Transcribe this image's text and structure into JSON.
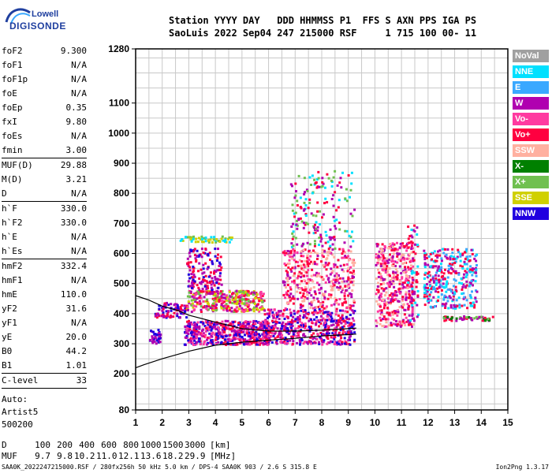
{
  "logo": {
    "top": "Lowell",
    "bottom": "DIGISONDE"
  },
  "header": {
    "line1": "Station YYYY DAY   DDD HHMMSS P1  FFS S AXN PPS IGA PS",
    "line2": "SaoLuis 2022 Sep04 247 215000 RSF     1 715 100 00- 11"
  },
  "params": [
    {
      "label": "foF2",
      "value": "9.300"
    },
    {
      "label": "foF1",
      "value": "N/A"
    },
    {
      "label": "foF1p",
      "value": "N/A"
    },
    {
      "label": "foE",
      "value": "N/A"
    },
    {
      "label": "foEp",
      "value": "0.35"
    },
    {
      "label": "fxI",
      "value": "9.80"
    },
    {
      "label": "foEs",
      "value": "N/A"
    },
    {
      "label": "fmin",
      "value": "3.00"
    },
    {
      "sep": true
    },
    {
      "label": "MUF(D)",
      "value": "29.88"
    },
    {
      "label": "M(D)",
      "value": "3.21"
    },
    {
      "label": "D",
      "value": "N/A"
    },
    {
      "sep": true
    },
    {
      "label": "h`F",
      "value": "330.0"
    },
    {
      "label": "h`F2",
      "value": "330.0"
    },
    {
      "label": "h`E",
      "value": "N/A"
    },
    {
      "label": "h`Es",
      "value": "N/A"
    },
    {
      "sep": true
    },
    {
      "label": "hmF2",
      "value": "332.4"
    },
    {
      "label": "hmF1",
      "value": "N/A"
    },
    {
      "label": "hmE",
      "value": "110.0"
    },
    {
      "label": "yF2",
      "value": "31.6"
    },
    {
      "label": "yF1",
      "value": "N/A"
    },
    {
      "label": "yE",
      "value": "20.0"
    },
    {
      "label": "B0",
      "value": "44.2"
    },
    {
      "label": "B1",
      "value": "1.01"
    },
    {
      "sep": true
    },
    {
      "label": "C-level",
      "value": "33"
    },
    {
      "sep": true
    }
  ],
  "auto": [
    "Auto:",
    "Artist5",
    "500200"
  ],
  "legend": [
    {
      "label": "NoVal",
      "color": "#a0a0a0"
    },
    {
      "label": "NNE",
      "color": "#00e0ff"
    },
    {
      "label": "E",
      "color": "#3aa8ff"
    },
    {
      "label": "W",
      "color": "#b000b0"
    },
    {
      "label": "Vo-",
      "color": "#ff3aa0"
    },
    {
      "label": "Vo+",
      "color": "#ff0040"
    },
    {
      "label": "SSW",
      "color": "#ffb0a0"
    },
    {
      "label": "X-",
      "color": "#008000"
    },
    {
      "label": "X+",
      "color": "#70c050"
    },
    {
      "label": "SSE",
      "color": "#d0d000"
    },
    {
      "label": "NNW",
      "color": "#2000e0"
    }
  ],
  "bottom": {
    "d_label": "D",
    "d_values": [
      "100",
      "200",
      "400",
      "600",
      "800",
      "1000",
      "1500",
      "3000",
      "[km]"
    ],
    "muf_label": "MUF",
    "muf_values": [
      "9.7",
      "9.8",
      "10.2",
      "11.0",
      "12.1",
      "13.6",
      "18.2",
      "29.9",
      "[MHz]"
    ]
  },
  "footer": "SAA0K_2022247215000.RSF / 280fx256h 50 kHz 5.0 km / DPS-4 SAA0K 903 / 2.6 S 315.8 E",
  "version": "Ion2Png 1.3.17",
  "chart_data": {
    "type": "scatter",
    "title": "",
    "xlabel": "",
    "ylabel": "",
    "xlim": [
      1,
      15
    ],
    "ylim": [
      80,
      1280
    ],
    "x_ticks": [
      1,
      2,
      3,
      4,
      5,
      6,
      7,
      8,
      9,
      10,
      11,
      12,
      13,
      14,
      15
    ],
    "y_ticks": [
      80,
      200,
      300,
      400,
      500,
      600,
      700,
      800,
      900,
      1000,
      1100,
      1280
    ],
    "clusters": [
      {
        "x": [
          1.5,
          1.9
        ],
        "y": [
          300,
          350
        ],
        "series": [
          "NNW",
          "W"
        ],
        "n": 40
      },
      {
        "x": [
          1.7,
          2.9
        ],
        "y": [
          390,
          440
        ],
        "series": [
          "W",
          "NNW",
          "Vo+"
        ],
        "n": 90
      },
      {
        "x": [
          2.8,
          6.0
        ],
        "y": [
          300,
          380
        ],
        "series": [
          "NNW",
          "W",
          "Vo+",
          "Vo-"
        ],
        "n": 520
      },
      {
        "x": [
          2.9,
          5.8
        ],
        "y": [
          410,
          480
        ],
        "series": [
          "Vo+",
          "W",
          "SSE",
          "Vo-",
          "X+"
        ],
        "n": 360
      },
      {
        "x": [
          2.9,
          4.2
        ],
        "y": [
          470,
          620
        ],
        "series": [
          "W",
          "NNW",
          "Vo+"
        ],
        "n": 160
      },
      {
        "x": [
          2.6,
          4.6
        ],
        "y": [
          640,
          660
        ],
        "series": [
          "X+",
          "NNE",
          "SSE"
        ],
        "n": 60
      },
      {
        "x": [
          5.8,
          9.2
        ],
        "y": [
          300,
          420
        ],
        "series": [
          "Vo+",
          "Vo-",
          "W",
          "NNW"
        ],
        "n": 520
      },
      {
        "x": [
          6.5,
          9.2
        ],
        "y": [
          420,
          620
        ],
        "series": [
          "Vo+",
          "W",
          "Vo-",
          "SSW"
        ],
        "n": 420
      },
      {
        "x": [
          6.8,
          9.2
        ],
        "y": [
          620,
          880
        ],
        "series": [
          "Vo+",
          "W",
          "X+",
          "NNE"
        ],
        "n": 180
      },
      {
        "x": [
          10.0,
          11.4
        ],
        "y": [
          360,
          640
        ],
        "series": [
          "Vo+",
          "W",
          "Vo-",
          "SSW"
        ],
        "n": 420
      },
      {
        "x": [
          11.2,
          11.6
        ],
        "y": [
          380,
          700
        ],
        "series": [
          "Vo+",
          "NNE",
          "W"
        ],
        "n": 70
      },
      {
        "x": [
          11.8,
          13.8
        ],
        "y": [
          420,
          620
        ],
        "series": [
          "NNE",
          "E",
          "Vo+",
          "W"
        ],
        "n": 340
      },
      {
        "x": [
          12.4,
          14.4
        ],
        "y": [
          380,
          395
        ],
        "series": [
          "X-",
          "X+",
          "W",
          "Vo+"
        ],
        "n": 60
      }
    ],
    "curves": [
      {
        "name": "profile",
        "x": [
          1.0,
          1.3,
          2.0,
          3.0,
          4.0,
          5.0,
          6.0,
          7.0,
          8.0,
          8.9,
          9.3
        ],
        "y": [
          220,
          230,
          250,
          275,
          295,
          305,
          312,
          318,
          326,
          330,
          332
        ]
      },
      {
        "name": "trace",
        "x": [
          1.0,
          1.5,
          2.0,
          2.6,
          3.0,
          4.0,
          5.0,
          6.0,
          7.0,
          8.0,
          9.0,
          9.3
        ],
        "y": [
          460,
          445,
          425,
          410,
          395,
          372,
          350,
          342,
          342,
          345,
          350,
          352
        ]
      }
    ]
  }
}
